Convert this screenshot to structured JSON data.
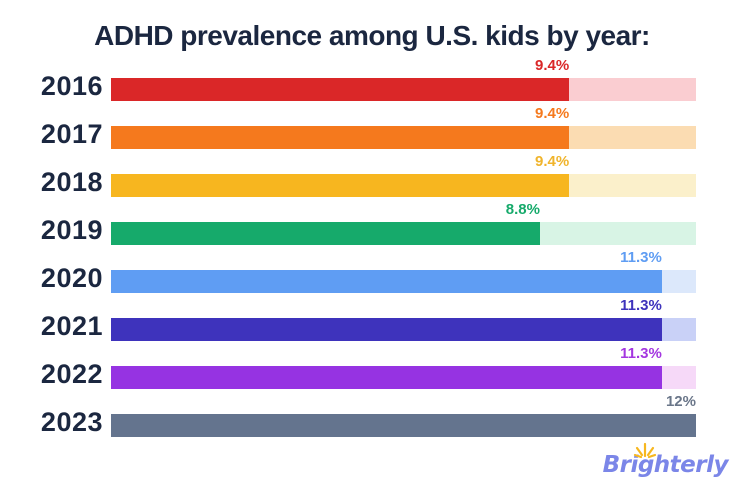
{
  "title": "ADHD prevalence among U.S. kids by year:",
  "theme": {
    "background": "#FFFFFF",
    "text_color": "#1B2740"
  },
  "logo": {
    "text": "Brighterly",
    "color": "#7B86E8",
    "sparkle_color": "#F7B71F"
  },
  "chart_data": {
    "type": "bar",
    "orientation": "horizontal",
    "title": "ADHD prevalence among U.S. kids by year:",
    "xlabel": "",
    "ylabel": "",
    "unit": "%",
    "xlim": [
      0,
      12
    ],
    "grid": false,
    "legend": false,
    "categories": [
      "2016",
      "2017",
      "2018",
      "2019",
      "2020",
      "2021",
      "2022",
      "2023"
    ],
    "values": [
      9.4,
      9.4,
      9.4,
      8.8,
      11.3,
      11.3,
      11.3,
      12
    ],
    "rows": [
      {
        "year": "2016",
        "value": 9.4,
        "label": "9.4%",
        "fill": "#DA2728",
        "track": "#FACDD1",
        "label_color": "#DA2728"
      },
      {
        "year": "2017",
        "value": 9.4,
        "label": "9.4%",
        "fill": "#F5791D",
        "track": "#FBDCB2",
        "label_color": "#F5791D"
      },
      {
        "year": "2018",
        "value": 9.4,
        "label": "9.4%",
        "fill": "#F7B61F",
        "track": "#FBF0CB",
        "label_color": "#F0B42C"
      },
      {
        "year": "2019",
        "value": 8.8,
        "label": "8.8%",
        "fill": "#16AA6B",
        "track": "#D8F4E5",
        "label_color": "#16AA6B"
      },
      {
        "year": "2020",
        "value": 11.3,
        "label": "11.3%",
        "fill": "#5F9DF3",
        "track": "#DCE8FB",
        "label_color": "#5F9DF3"
      },
      {
        "year": "2021",
        "value": 11.3,
        "label": "11.3%",
        "fill": "#3E33BC",
        "track": "#C9D1F7",
        "label_color": "#3E33BC"
      },
      {
        "year": "2022",
        "value": 11.3,
        "label": "11.3%",
        "fill": "#9633E2",
        "track": "#F6D9F8",
        "label_color": "#A437E0"
      },
      {
        "year": "2023",
        "value": 12,
        "label": "12%",
        "fill": "#64748E",
        "track": "#64748E",
        "label_color": "#6A7689"
      }
    ]
  }
}
